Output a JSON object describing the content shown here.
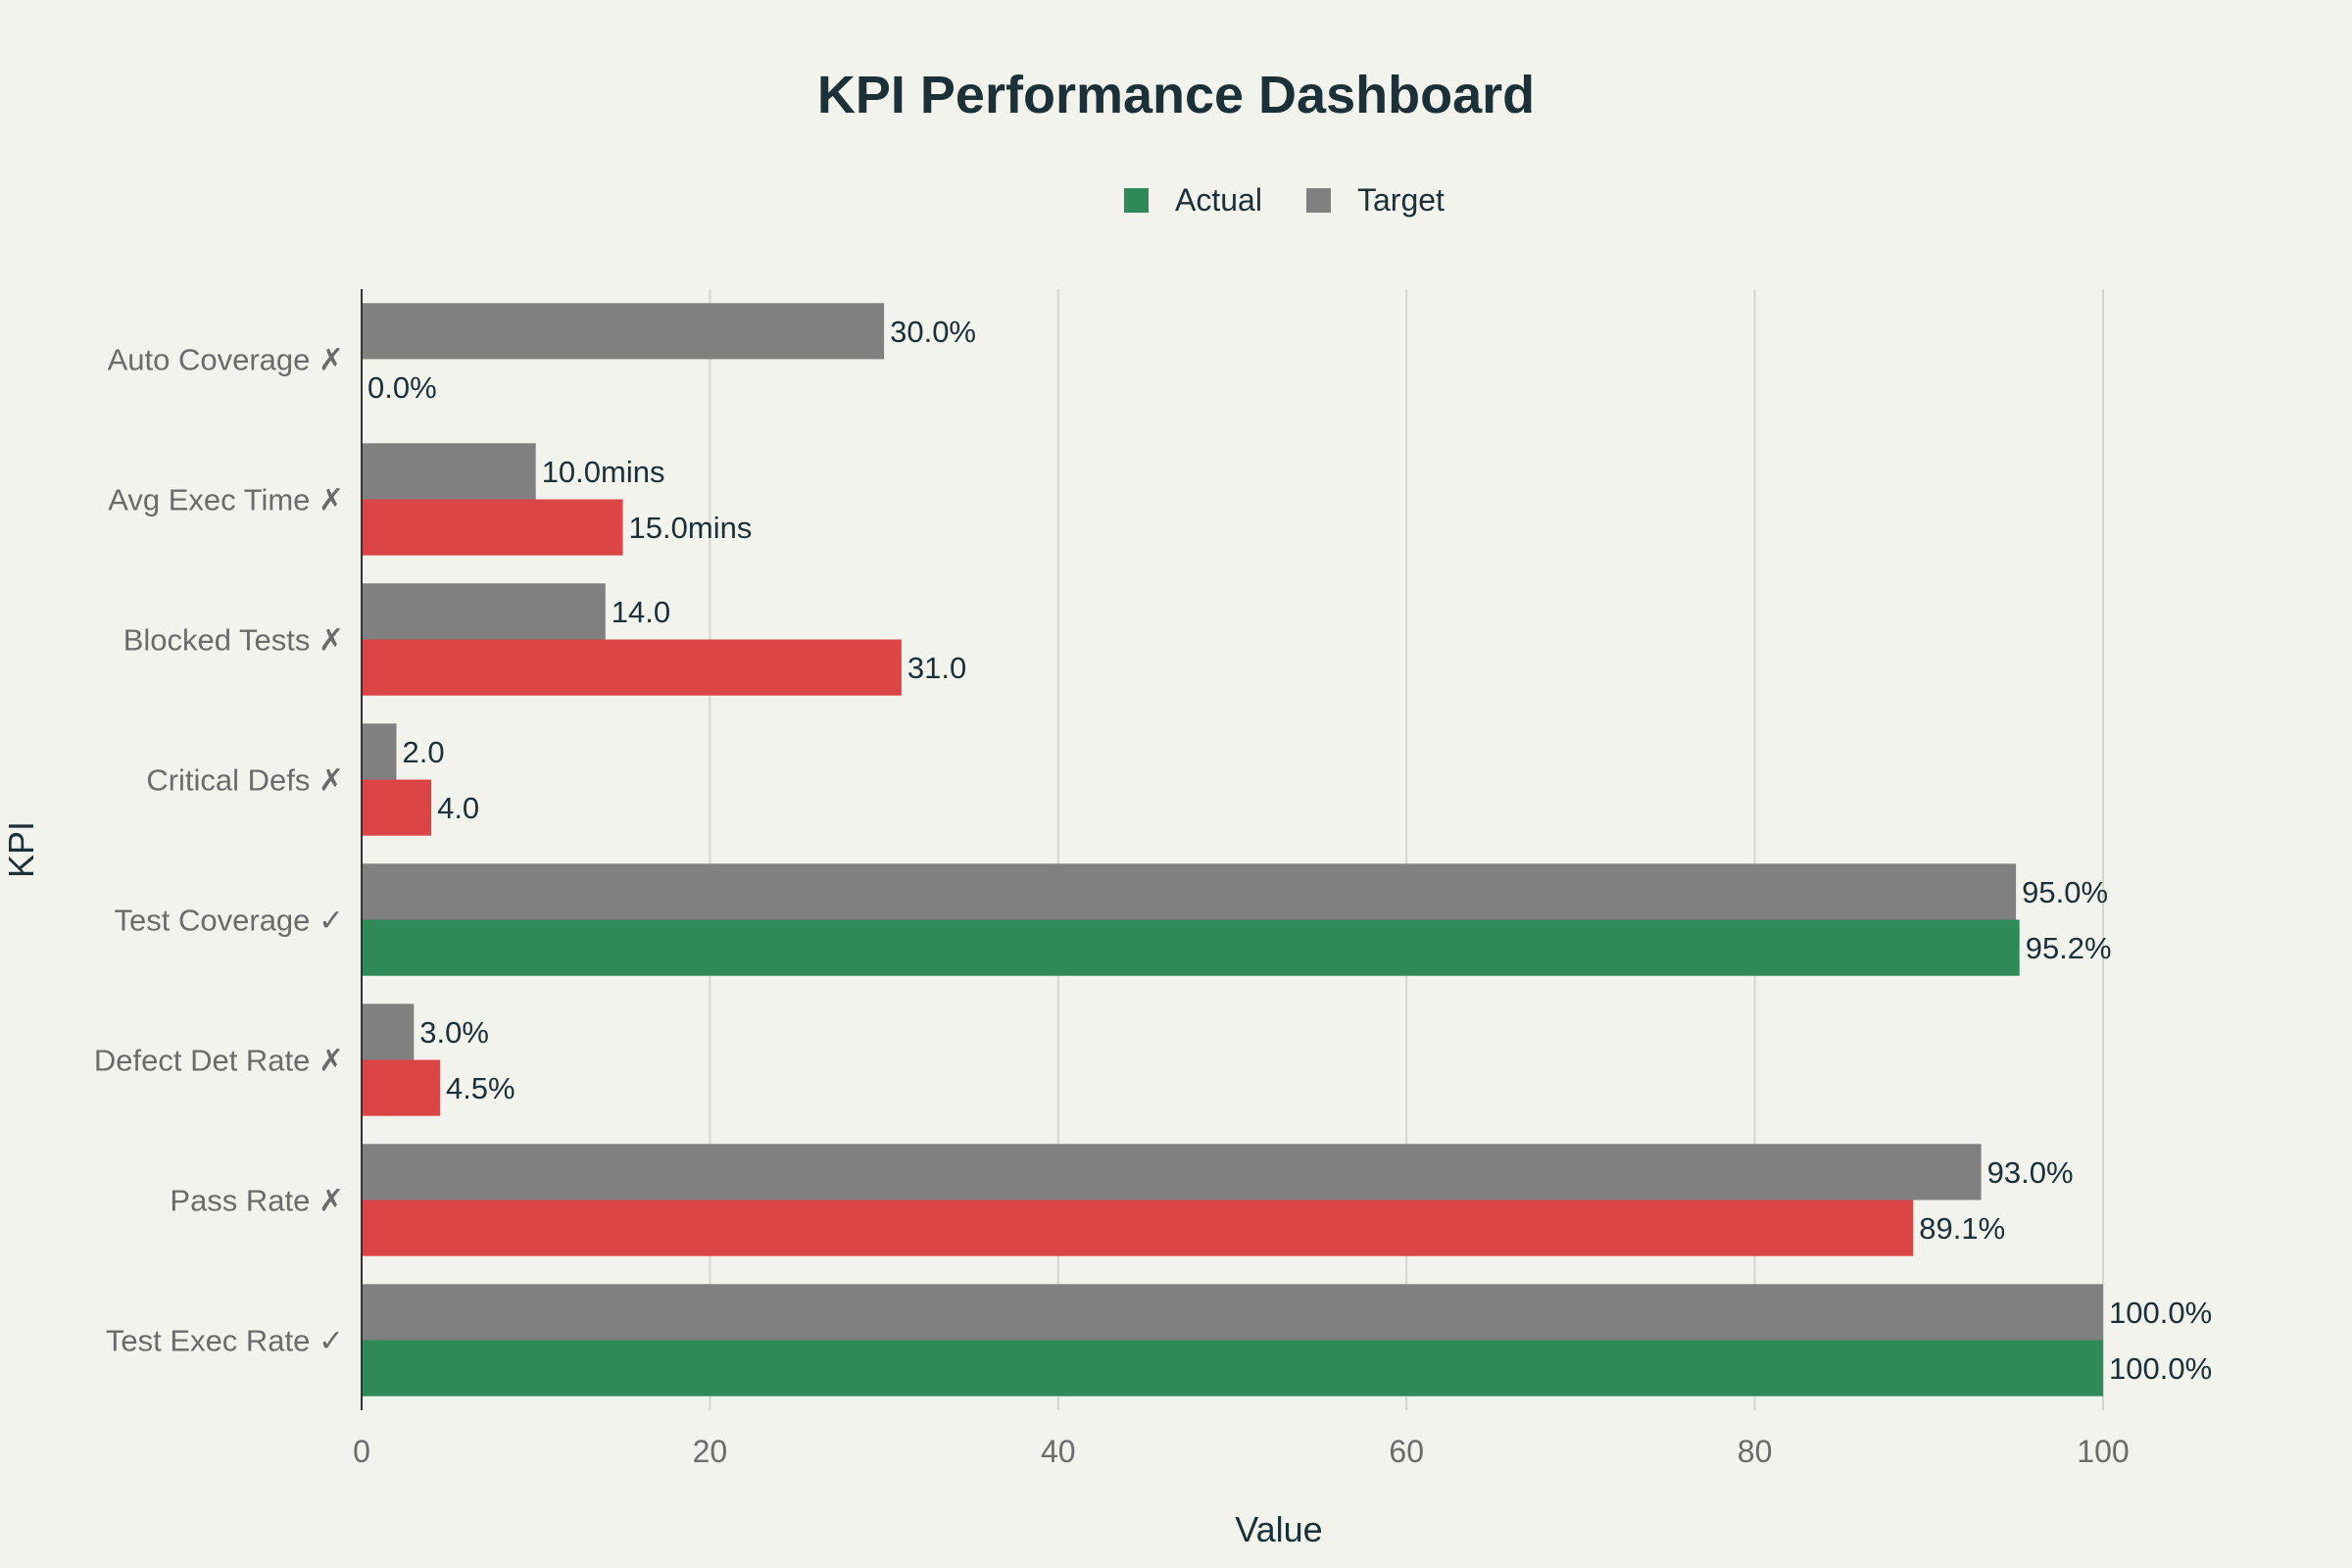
{
  "chart_data": {
    "type": "bar",
    "orientation": "horizontal",
    "title": "KPI Performance Dashboard",
    "xlabel": "Value",
    "ylabel": "KPI",
    "xlim": [
      0,
      100
    ],
    "x_ticks": [
      0,
      20,
      40,
      60,
      80,
      100
    ],
    "grid": true,
    "legend_position": "top-center",
    "legend": [
      {
        "name": "Actual",
        "color": "#2e8b57"
      },
      {
        "name": "Target",
        "color": "#808080"
      }
    ],
    "colors": {
      "met": "#2e8b57",
      "missed": "#db4545",
      "target": "#808080"
    },
    "categories": [
      "Auto Coverage ✗",
      "Avg Exec Time ✗",
      "Blocked Tests ✗",
      "Critical Defs ✗",
      "Test Coverage ✓",
      "Defect Det Rate ✗",
      "Pass Rate ✗",
      "Test Exec Rate ✓"
    ],
    "series": [
      {
        "name": "Target",
        "values": [
          30.0,
          10.0,
          14.0,
          2.0,
          95.0,
          3.0,
          93.0,
          100.0
        ],
        "labels": [
          "30.0%",
          "10.0mins",
          "14.0",
          "2.0",
          "95.0%",
          "3.0%",
          "93.0%",
          "100.0%"
        ]
      },
      {
        "name": "Actual",
        "values": [
          0.0,
          15.0,
          31.0,
          4.0,
          95.2,
          4.5,
          89.1,
          100.0
        ],
        "labels": [
          "0.0%",
          "15.0mins",
          "31.0",
          "4.0",
          "95.2%",
          "4.5%",
          "89.1%",
          "100.0%"
        ],
        "status": [
          "missed",
          "missed",
          "missed",
          "missed",
          "met",
          "missed",
          "missed",
          "met"
        ]
      }
    ]
  }
}
